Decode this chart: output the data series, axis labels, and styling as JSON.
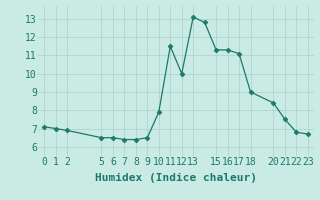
{
  "x": [
    0,
    1,
    2,
    5,
    6,
    7,
    8,
    9,
    10,
    11,
    12,
    13,
    14,
    15,
    16,
    17,
    18,
    20,
    21,
    22,
    23
  ],
  "y": [
    7.1,
    7.0,
    6.9,
    6.5,
    6.5,
    6.4,
    6.4,
    6.5,
    7.9,
    11.5,
    10.0,
    13.1,
    12.8,
    11.3,
    11.3,
    11.1,
    9.0,
    8.4,
    7.5,
    6.8,
    6.7
  ],
  "line_color": "#1a7a6a",
  "marker": "D",
  "marker_size": 2.5,
  "bg_color": "#caeae4",
  "grid_color": "#b0d5ce",
  "xlabel": "Humidex (Indice chaleur)",
  "xlabel_fontsize": 8,
  "xticks": [
    0,
    1,
    2,
    5,
    6,
    7,
    8,
    9,
    10,
    11,
    12,
    13,
    15,
    16,
    17,
    18,
    20,
    21,
    22,
    23
  ],
  "yticks": [
    6,
    7,
    8,
    9,
    10,
    11,
    12,
    13
  ],
  "ylim": [
    5.5,
    13.7
  ],
  "xlim": [
    -0.5,
    23.5
  ],
  "tick_fontsize": 7,
  "tick_color": "#1a7a6a"
}
